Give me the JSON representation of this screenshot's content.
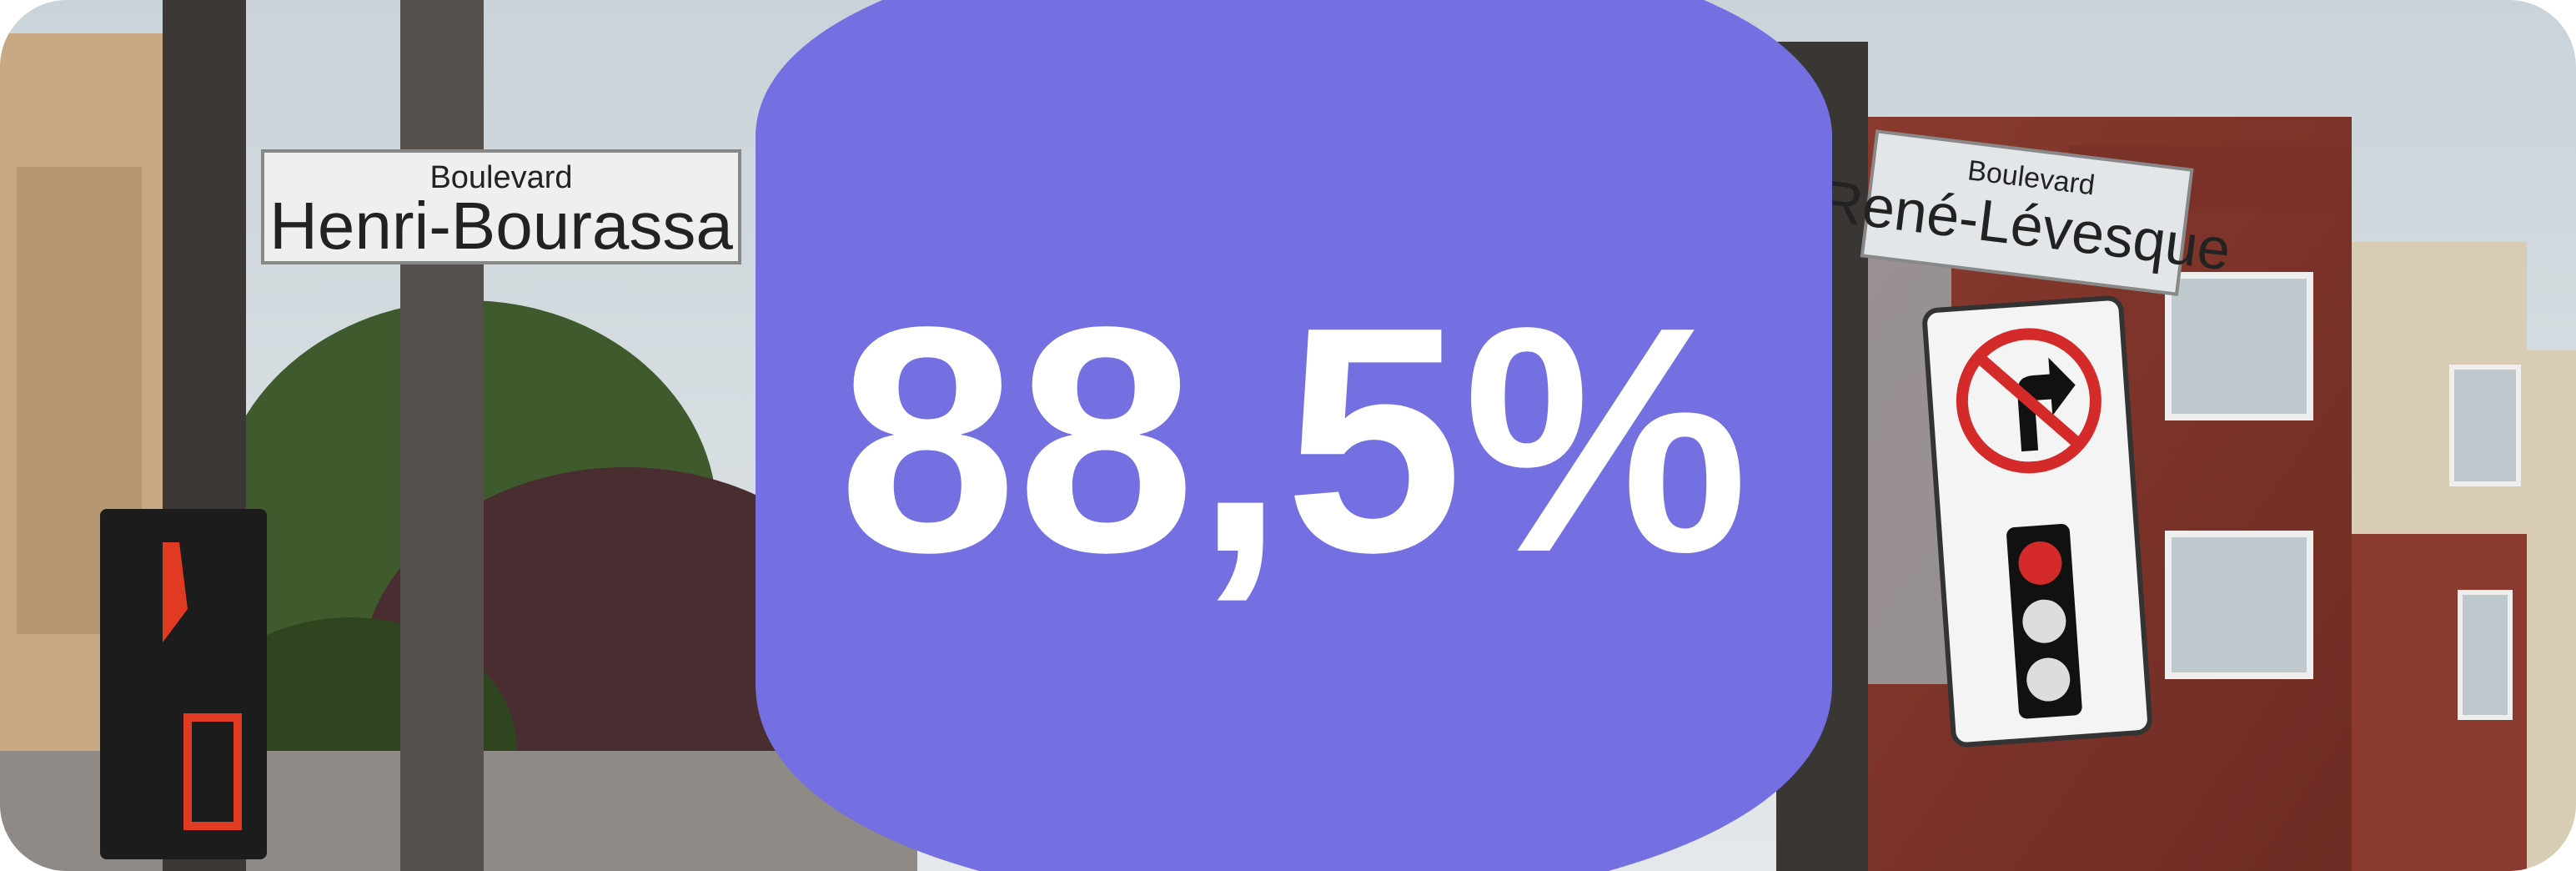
{
  "banner": {
    "left_sign": {
      "line1": "Boulevard",
      "line2": "Henri-Bourassa"
    },
    "right_sign": {
      "line1": "Boulevard",
      "line2": "René-Lévesque"
    },
    "stat": "88,5%"
  }
}
